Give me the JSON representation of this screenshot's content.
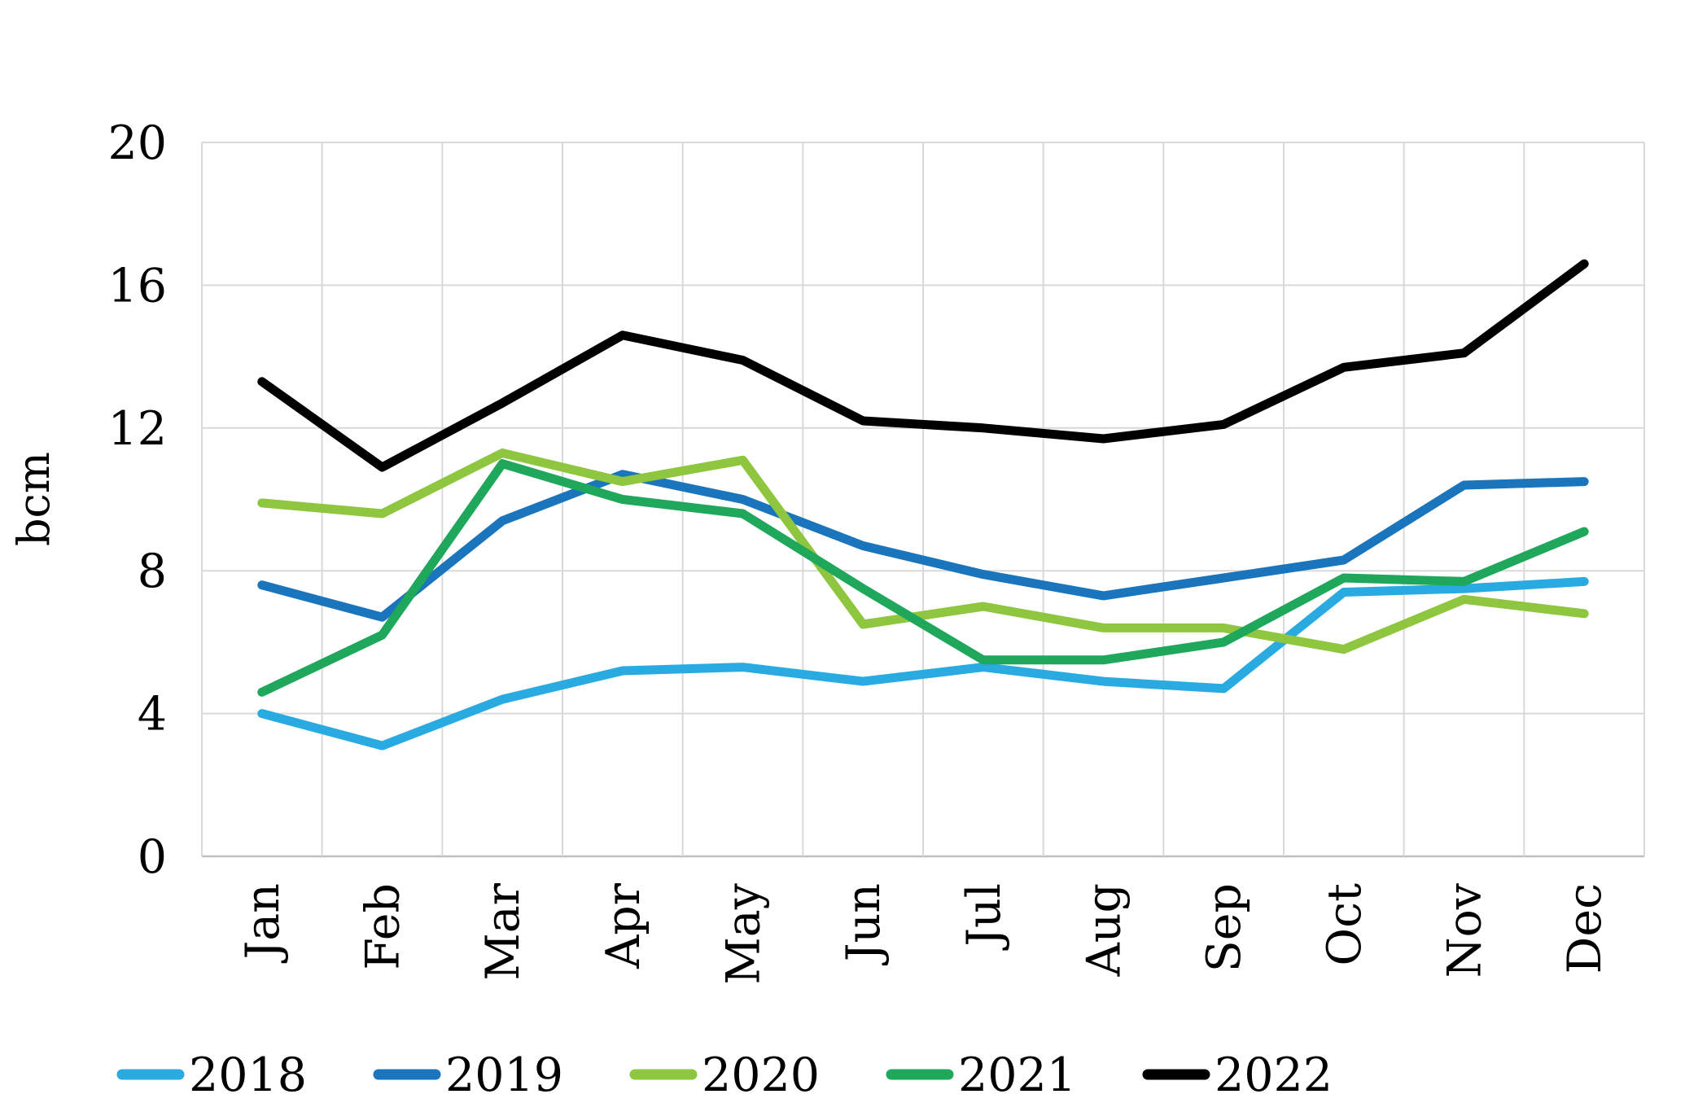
{
  "chart_data": {
    "type": "line",
    "title": "",
    "xlabel": "",
    "ylabel": "bcm",
    "ylim": [
      0,
      20
    ],
    "yticks": [
      0,
      4,
      8,
      12,
      16,
      20
    ],
    "grid": true,
    "legend_position": "bottom",
    "categories": [
      "Jan",
      "Feb",
      "Mar",
      "Apr",
      "May",
      "Jun",
      "Jul",
      "Aug",
      "Sep",
      "Oct",
      "Nov",
      "Dec"
    ],
    "series": [
      {
        "name": "2018",
        "color": "#29ABE2",
        "values": [
          4.0,
          3.1,
          4.4,
          5.2,
          5.3,
          4.9,
          5.3,
          4.9,
          4.7,
          7.4,
          7.5,
          7.7
        ]
      },
      {
        "name": "2019",
        "color": "#1B75BC",
        "values": [
          7.6,
          6.7,
          9.4,
          10.7,
          10.0,
          8.7,
          7.9,
          7.3,
          7.8,
          8.3,
          10.4,
          10.5
        ]
      },
      {
        "name": "2020",
        "color": "#8EC63F",
        "values": [
          9.9,
          9.6,
          11.3,
          10.5,
          11.1,
          6.5,
          7.0,
          6.4,
          6.4,
          5.8,
          7.2,
          6.8
        ]
      },
      {
        "name": "2021",
        "color": "#1FA75C",
        "values": [
          4.6,
          6.2,
          11.0,
          10.0,
          9.6,
          7.5,
          5.5,
          5.5,
          6.0,
          7.8,
          7.7,
          9.1
        ]
      },
      {
        "name": "2022",
        "color": "#000000",
        "values": [
          13.3,
          10.9,
          12.7,
          14.6,
          13.9,
          12.2,
          12.0,
          11.7,
          12.1,
          13.7,
          14.1,
          16.6
        ]
      }
    ],
    "style": {
      "gridline_color": "#D9D9D9",
      "axis_color": "#BFBFBF",
      "background": "#FFFFFF",
      "line_width": 11
    }
  }
}
